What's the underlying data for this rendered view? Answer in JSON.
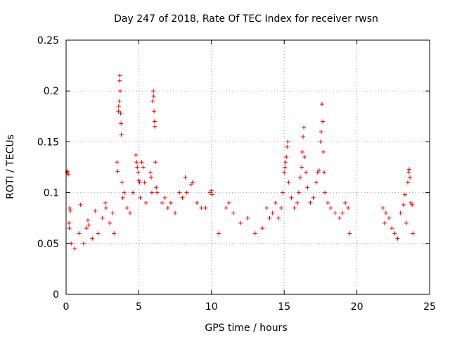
{
  "chart_data": {
    "type": "scatter",
    "title": "Day 247 of 2018, Rate Of TEC Index for receiver rwsn",
    "xlabel": "GPS time / hours",
    "ylabel": "ROTI / TECUs",
    "xlim": [
      0,
      25
    ],
    "ylim": [
      0,
      0.25
    ],
    "xticks": [
      "0",
      "5",
      "10",
      "15",
      "20",
      "25"
    ],
    "yticks": [
      "0",
      "0.05",
      "0.1",
      "0.15",
      "0.2",
      "0.25"
    ],
    "grid": true,
    "marker": "plus",
    "color": "#ee0000",
    "series": [
      {
        "points": [
          [
            0.05,
            0.12
          ],
          [
            0.1,
            0.121
          ],
          [
            0.15,
            0.118
          ],
          [
            0.2,
            0.07
          ],
          [
            0.22,
            0.065
          ],
          [
            0.25,
            0.085
          ],
          [
            0.3,
            0.082
          ],
          [
            0.35,
            0.05
          ],
          [
            0.6,
            0.045
          ],
          [
            0.9,
            0.06
          ],
          [
            1.0,
            0.088
          ],
          [
            1.2,
            0.05
          ],
          [
            1.4,
            0.065
          ],
          [
            1.5,
            0.073
          ],
          [
            1.55,
            0.068
          ],
          [
            1.8,
            0.055
          ],
          [
            2.0,
            0.082
          ],
          [
            2.2,
            0.06
          ],
          [
            2.5,
            0.075
          ],
          [
            2.7,
            0.09
          ],
          [
            2.75,
            0.085
          ],
          [
            3.0,
            0.07
          ],
          [
            3.2,
            0.08
          ],
          [
            3.3,
            0.06
          ],
          [
            3.5,
            0.13
          ],
          [
            3.55,
            0.121
          ],
          [
            3.6,
            0.18
          ],
          [
            3.62,
            0.185
          ],
          [
            3.65,
            0.19
          ],
          [
            3.68,
            0.21
          ],
          [
            3.7,
            0.215
          ],
          [
            3.72,
            0.2
          ],
          [
            3.75,
            0.178
          ],
          [
            3.78,
            0.168
          ],
          [
            3.8,
            0.157
          ],
          [
            3.85,
            0.11
          ],
          [
            3.9,
            0.095
          ],
          [
            4.0,
            0.1
          ],
          [
            4.2,
            0.085
          ],
          [
            4.4,
            0.08
          ],
          [
            4.6,
            0.1
          ],
          [
            4.8,
            0.137
          ],
          [
            4.85,
            0.13
          ],
          [
            4.9,
            0.125
          ],
          [
            4.95,
            0.12
          ],
          [
            5.0,
            0.112
          ],
          [
            5.05,
            0.11
          ],
          [
            5.1,
            0.095
          ],
          [
            5.2,
            0.13
          ],
          [
            5.3,
            0.125
          ],
          [
            5.4,
            0.11
          ],
          [
            5.5,
            0.09
          ],
          [
            5.8,
            0.12
          ],
          [
            5.85,
            0.115
          ],
          [
            5.9,
            0.1
          ],
          [
            5.95,
            0.19
          ],
          [
            6.0,
            0.2
          ],
          [
            6.02,
            0.195
          ],
          [
            6.05,
            0.18
          ],
          [
            6.08,
            0.17
          ],
          [
            6.1,
            0.165
          ],
          [
            6.15,
            0.13
          ],
          [
            6.2,
            0.105
          ],
          [
            6.25,
            0.1
          ],
          [
            6.6,
            0.09
          ],
          [
            6.8,
            0.095
          ],
          [
            7.0,
            0.085
          ],
          [
            7.2,
            0.09
          ],
          [
            7.5,
            0.08
          ],
          [
            7.8,
            0.1
          ],
          [
            8.0,
            0.095
          ],
          [
            8.2,
            0.115
          ],
          [
            8.3,
            0.1
          ],
          [
            8.6,
            0.108
          ],
          [
            8.7,
            0.11
          ],
          [
            9.0,
            0.09
          ],
          [
            9.3,
            0.085
          ],
          [
            9.6,
            0.085
          ],
          [
            9.9,
            0.1
          ],
          [
            10.0,
            0.102
          ],
          [
            10.05,
            0.098
          ],
          [
            10.5,
            0.06
          ],
          [
            11.0,
            0.085
          ],
          [
            11.2,
            0.09
          ],
          [
            11.5,
            0.08
          ],
          [
            12.0,
            0.07
          ],
          [
            12.5,
            0.075
          ],
          [
            13.0,
            0.06
          ],
          [
            13.5,
            0.065
          ],
          [
            13.8,
            0.085
          ],
          [
            14.0,
            0.075
          ],
          [
            14.2,
            0.08
          ],
          [
            14.4,
            0.09
          ],
          [
            14.6,
            0.075
          ],
          [
            14.8,
            0.085
          ],
          [
            14.9,
            0.1
          ],
          [
            15.0,
            0.12
          ],
          [
            15.05,
            0.125
          ],
          [
            15.1,
            0.13
          ],
          [
            15.15,
            0.135
          ],
          [
            15.2,
            0.145
          ],
          [
            15.25,
            0.15
          ],
          [
            15.3,
            0.11
          ],
          [
            15.5,
            0.095
          ],
          [
            15.7,
            0.085
          ],
          [
            15.9,
            0.09
          ],
          [
            16.0,
            0.1
          ],
          [
            16.1,
            0.115
          ],
          [
            16.2,
            0.125
          ],
          [
            16.25,
            0.14
          ],
          [
            16.3,
            0.155
          ],
          [
            16.35,
            0.164
          ],
          [
            16.4,
            0.135
          ],
          [
            16.5,
            0.12
          ],
          [
            16.6,
            0.105
          ],
          [
            16.8,
            0.09
          ],
          [
            17.0,
            0.095
          ],
          [
            17.2,
            0.11
          ],
          [
            17.3,
            0.12
          ],
          [
            17.4,
            0.122
          ],
          [
            17.5,
            0.15
          ],
          [
            17.55,
            0.16
          ],
          [
            17.6,
            0.187
          ],
          [
            17.65,
            0.17
          ],
          [
            17.7,
            0.14
          ],
          [
            17.75,
            0.12
          ],
          [
            17.8,
            0.1
          ],
          [
            18.0,
            0.09
          ],
          [
            18.2,
            0.085
          ],
          [
            18.5,
            0.08
          ],
          [
            18.8,
            0.075
          ],
          [
            19.0,
            0.08
          ],
          [
            19.2,
            0.09
          ],
          [
            19.4,
            0.085
          ],
          [
            19.5,
            0.06
          ],
          [
            21.8,
            0.085
          ],
          [
            21.9,
            0.07
          ],
          [
            22.0,
            0.08
          ],
          [
            22.2,
            0.075
          ],
          [
            22.4,
            0.065
          ],
          [
            22.6,
            0.06
          ],
          [
            22.8,
            0.055
          ],
          [
            23.0,
            0.08
          ],
          [
            23.2,
            0.088
          ],
          [
            23.3,
            0.098
          ],
          [
            23.4,
            0.07
          ],
          [
            23.5,
            0.11
          ],
          [
            23.55,
            0.12
          ],
          [
            23.6,
            0.123
          ],
          [
            23.65,
            0.115
          ],
          [
            23.7,
            0.09
          ],
          [
            23.8,
            0.088
          ],
          [
            23.85,
            0.06
          ]
        ]
      }
    ]
  }
}
